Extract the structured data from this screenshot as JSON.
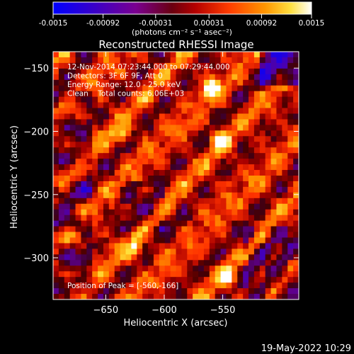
{
  "chart_data": {
    "type": "heatmap",
    "title": "Reconstructed RHESSI Image",
    "xlabel": "Heliocentric X (arcsec)",
    "ylabel": "Heliocentric Y (arcsec)",
    "xlim": [
      -695,
      -485
    ],
    "ylim": [
      -333,
      -137
    ],
    "x_ticks": [
      -650,
      -600,
      -550
    ],
    "y_ticks": [
      -150,
      -200,
      -250,
      -300
    ],
    "colorbar": {
      "ticks": [
        "-0.0015",
        "-0.00092",
        "-0.00031",
        "0.00031",
        "0.00092",
        "0.0015"
      ],
      "unit_label": "(photons cm⁻² s⁻¹ asec⁻²)",
      "range": [
        -0.0015,
        0.0015
      ]
    },
    "annotations": [
      "12-Nov-2014 07:23:44.000 to 07:29:44.000",
      "Detectors: 3F 6F 9F, Att 0",
      "Energy Range: 12.0 - 25.0 keV",
      "Clean    Total counts: 6.06E+03"
    ],
    "peak_label": "Position of Peak = [-560,-166]",
    "peak_position": [
      -560,
      -166
    ],
    "bright_sources": [
      {
        "x": -560,
        "y": -166,
        "value": 0.0015
      },
      {
        "x": -552,
        "y": -206,
        "value": 0.0012
      },
      {
        "x": -625,
        "y": -294,
        "value": 0.0011
      },
      {
        "x": -546,
        "y": -315,
        "value": 0.0011
      },
      {
        "x": -636,
        "y": -204,
        "value": 0.001
      }
    ],
    "grid": false
  },
  "footer": {
    "date": "19-May-2022 10:29"
  }
}
